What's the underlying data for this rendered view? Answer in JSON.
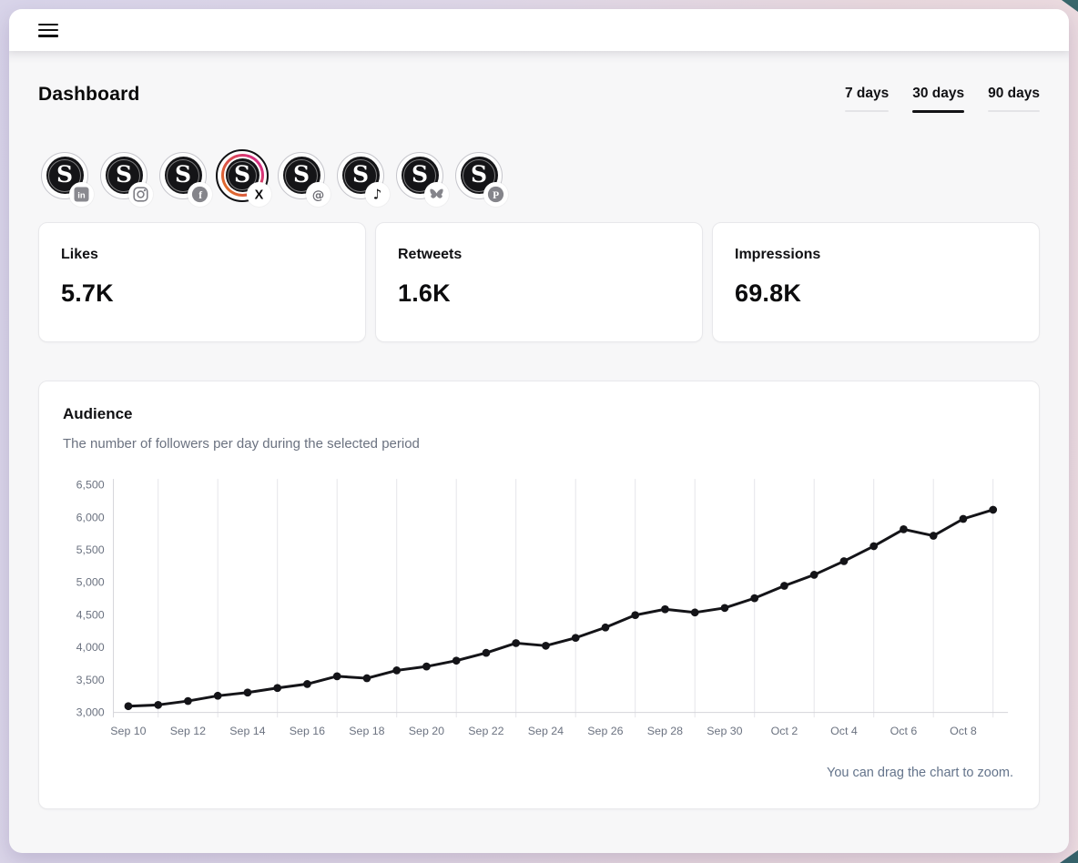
{
  "brand": {
    "avatar_letter": "S"
  },
  "header": {
    "menu": "menu"
  },
  "page": {
    "title": "Dashboard"
  },
  "period_tabs": [
    {
      "label": "7 days",
      "active": false
    },
    {
      "label": "30 days",
      "active": true
    },
    {
      "label": "90 days",
      "active": false
    }
  ],
  "accounts": [
    {
      "platform": "linkedin",
      "selected": false,
      "glyph": "in"
    },
    {
      "platform": "instagram",
      "selected": false,
      "glyph": ""
    },
    {
      "platform": "facebook",
      "selected": false,
      "glyph": "f"
    },
    {
      "platform": "x",
      "selected": true,
      "glyph": "X"
    },
    {
      "platform": "threads",
      "selected": false,
      "glyph": "@"
    },
    {
      "platform": "tiktok",
      "selected": false,
      "glyph": "♪"
    },
    {
      "platform": "bluesky",
      "selected": false,
      "glyph": ""
    },
    {
      "platform": "pinterest",
      "selected": false,
      "glyph": "P"
    }
  ],
  "stats": [
    {
      "label": "Likes",
      "value": "5.7K"
    },
    {
      "label": "Retweets",
      "value": "1.6K"
    },
    {
      "label": "Impressions",
      "value": "69.8K"
    }
  ],
  "audience": {
    "title": "Audience",
    "subtitle": "The number of followers per day during the selected period",
    "hint": "You can drag the chart to zoom."
  },
  "chart_data": {
    "type": "line",
    "title": "Audience followers per day",
    "x": [
      "Sep 10",
      "Sep 11",
      "Sep 12",
      "Sep 13",
      "Sep 14",
      "Sep 15",
      "Sep 16",
      "Sep 17",
      "Sep 18",
      "Sep 19",
      "Sep 20",
      "Sep 21",
      "Sep 22",
      "Sep 23",
      "Sep 24",
      "Sep 25",
      "Sep 26",
      "Sep 27",
      "Sep 28",
      "Sep 29",
      "Sep 30",
      "Oct 1",
      "Oct 2",
      "Oct 3",
      "Oct 4",
      "Oct 5",
      "Oct 6",
      "Oct 7",
      "Oct 8",
      "Oct 9"
    ],
    "values": [
      3090,
      3110,
      3170,
      3250,
      3300,
      3370,
      3430,
      3550,
      3520,
      3640,
      3700,
      3790,
      3910,
      4060,
      4020,
      4140,
      4300,
      4490,
      4580,
      4530,
      4600,
      4750,
      4940,
      5110,
      5320,
      5550,
      5810,
      5710,
      5970,
      6110
    ],
    "ylim": [
      3000,
      6500
    ],
    "ytick_step": 500,
    "ytick_labels": [
      "3,000",
      "3,500",
      "4,000",
      "4,500",
      "5,000",
      "5,500",
      "6,000",
      "6,500"
    ],
    "xtick_labels": [
      "Sep 10",
      "Sep 12",
      "Sep 14",
      "Sep 16",
      "Sep 18",
      "Sep 20",
      "Sep 22",
      "Sep 24",
      "Sep 26",
      "Sep 28",
      "Sep 30",
      "Oct 2",
      "Oct 4",
      "Oct 6",
      "Oct 8"
    ],
    "line_color": "#141418",
    "marker_color": "#141418",
    "grid_color": "#e5e5ea",
    "axis_color": "#d4d4d9",
    "tick_text_color": "#6b7280",
    "grid": "vertical-only",
    "legend": "none"
  }
}
